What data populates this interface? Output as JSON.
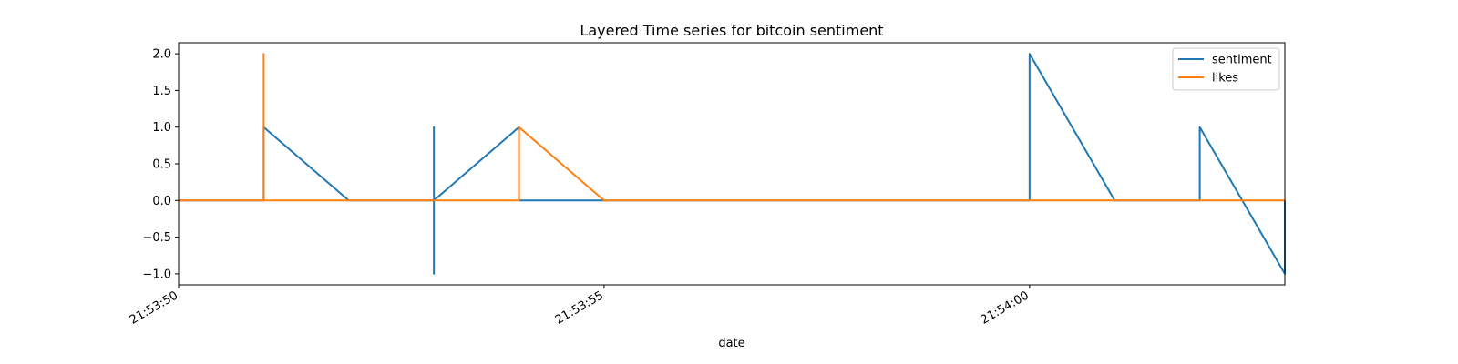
{
  "chart_data": {
    "type": "line",
    "title": "Layered Time series for bitcoin sentiment",
    "xlabel": "date",
    "ylabel": "",
    "x_unit": "seconds",
    "xlim": [
      "21:53:50",
      "21:54:03"
    ],
    "ylim": [
      -1.15,
      2.15
    ],
    "x_ticks": [
      "21:53:50",
      "21:53:55",
      "21:54:00"
    ],
    "y_ticks": [
      "2.0",
      "1.5",
      "1.0",
      "0.5",
      "0.0",
      "−0.5",
      "−1.0"
    ],
    "legend": {
      "position": "top-right"
    },
    "grid": false,
    "series": [
      {
        "name": "sentiment",
        "color": "#1f77b4",
        "points": [
          [
            "21:53:50",
            0
          ],
          [
            "21:53:51",
            0
          ],
          [
            "21:53:51",
            1
          ],
          [
            "21:53:52",
            0
          ],
          [
            "21:53:53",
            0
          ],
          [
            "21:53:53",
            1
          ],
          [
            "21:53:53",
            -1
          ],
          [
            "21:53:53",
            0
          ],
          [
            "21:53:54",
            1
          ],
          [
            "21:53:54",
            0
          ],
          [
            "21:53:55",
            0
          ],
          [
            "21:54:00",
            0
          ],
          [
            "21:54:00",
            1
          ],
          [
            "21:54:00",
            0
          ],
          [
            "21:54:00",
            2
          ],
          [
            "21:54:01",
            0
          ],
          [
            "21:54:02",
            0
          ],
          [
            "21:54:02",
            1
          ],
          [
            "21:54:03",
            -1
          ],
          [
            "21:54:03",
            0
          ]
        ]
      },
      {
        "name": "likes",
        "color": "#ff7f0e",
        "points": [
          [
            "21:53:50",
            0
          ],
          [
            "21:53:51",
            0
          ],
          [
            "21:53:51",
            2
          ],
          [
            "21:53:51",
            0
          ],
          [
            "21:53:54",
            0
          ],
          [
            "21:53:54",
            1
          ],
          [
            "21:53:54",
            0
          ],
          [
            "21:53:54",
            1
          ],
          [
            "21:53:55",
            0
          ],
          [
            "21:54:03",
            0
          ]
        ]
      }
    ]
  }
}
